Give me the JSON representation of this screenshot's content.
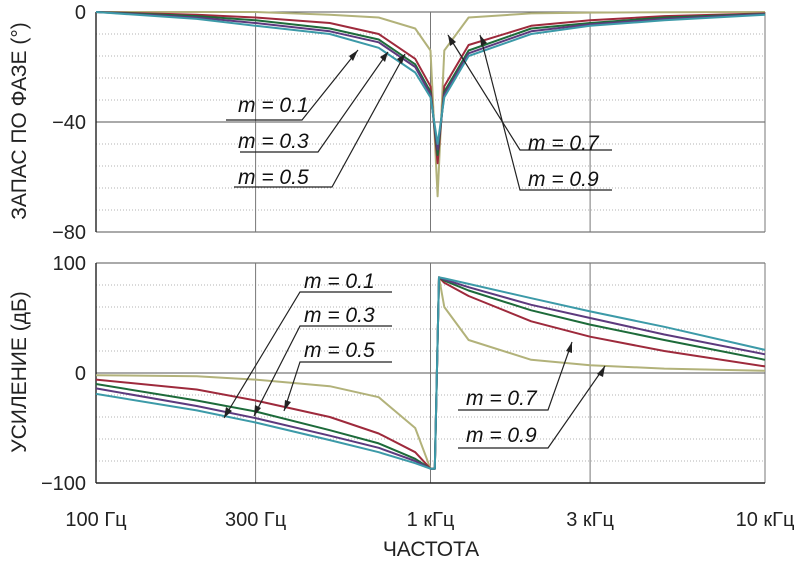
{
  "chart_data": [
    {
      "type": "line",
      "panel": "top",
      "ylabel": "ЗАПАС ПО ФАЗЕ (°)",
      "xscale": "log",
      "xlim": [
        100,
        10000
      ],
      "ylim": [
        -80,
        0
      ],
      "yticks": [
        {
          "value": 0,
          "label": "0"
        },
        {
          "value": -40,
          "label": "−40"
        },
        {
          "value": -80,
          "label": "−80"
        }
      ],
      "grid": true,
      "x_hz": [
        100,
        200,
        300,
        500,
        700,
        900,
        1000,
        1050,
        1100,
        1300,
        2000,
        3000,
        5000,
        10000
      ],
      "series": [
        {
          "name": "m = 0.1",
          "color": "#b2b27a",
          "values": [
            0,
            0,
            0,
            -1,
            -2,
            -6,
            -14,
            -67,
            -14,
            -2,
            -0.5,
            -0.2,
            -0.1,
            0
          ]
        },
        {
          "name": "m = 0.3",
          "color": "#9e2a3c",
          "values": [
            0,
            -1,
            -2,
            -4,
            -8,
            -17,
            -27,
            -55,
            -27,
            -12,
            -5,
            -3,
            -1.5,
            -0.5
          ]
        },
        {
          "name": "m = 0.5",
          "color": "#1d6b3a",
          "values": [
            0,
            -1.5,
            -3,
            -6,
            -10,
            -19,
            -29,
            -52,
            -29,
            -14,
            -6,
            -4,
            -2,
            -0.7
          ]
        },
        {
          "name": "m = 0.7",
          "color": "#5d3a7e",
          "values": [
            0,
            -2,
            -4,
            -7,
            -11,
            -20,
            -30,
            -50,
            -30,
            -15,
            -7,
            -4.5,
            -2.5,
            -0.8
          ]
        },
        {
          "name": "m = 0.9",
          "color": "#3c9aa8",
          "values": [
            0,
            -2.5,
            -5,
            -8,
            -13,
            -22,
            -31,
            -48,
            -31,
            -16,
            -8,
            -5,
            -3,
            -1
          ]
        }
      ],
      "annotations": [
        "m = 0.1",
        "m = 0.3",
        "m = 0.5",
        "m = 0.7",
        "m = 0.9"
      ]
    },
    {
      "type": "line",
      "panel": "bottom",
      "ylabel": "УСИЛЕНИЕ (дБ)",
      "xlabel": "ЧАСТОТА",
      "xscale": "log",
      "xlim": [
        100,
        10000
      ],
      "ylim": [
        -100,
        100
      ],
      "xticks": [
        {
          "value": 100,
          "label": "100 Гц"
        },
        {
          "value": 300,
          "label": "300 Гц"
        },
        {
          "value": 1000,
          "label": "1 кГц"
        },
        {
          "value": 3000,
          "label": "3 кГц"
        },
        {
          "value": 10000,
          "label": "10 кГц"
        }
      ],
      "yticks": [
        {
          "value": 100,
          "label": "100"
        },
        {
          "value": 0,
          "label": "0"
        },
        {
          "value": -100,
          "label": "−100"
        }
      ],
      "grid": true,
      "x_hz": [
        100,
        200,
        300,
        500,
        700,
        900,
        1000,
        1030,
        1060,
        1100,
        1300,
        2000,
        3000,
        5000,
        10000
      ],
      "series": [
        {
          "name": "m = 0.1",
          "color": "#b2b27a",
          "values": [
            -2,
            -3,
            -6,
            -12,
            -22,
            -50,
            -87,
            -87,
            87,
            60,
            30,
            12,
            7,
            4,
            2
          ]
        },
        {
          "name": "m = 0.3",
          "color": "#9e2a3c",
          "values": [
            -6,
            -15,
            -25,
            -40,
            -55,
            -72,
            -87,
            -87,
            87,
            82,
            70,
            47,
            33,
            20,
            6
          ]
        },
        {
          "name": "m = 0.5",
          "color": "#1d6b3a",
          "values": [
            -10,
            -25,
            -35,
            -52,
            -64,
            -78,
            -87,
            -87,
            87,
            84,
            75,
            57,
            44,
            30,
            12
          ]
        },
        {
          "name": "m = 0.7",
          "color": "#5d3a7e",
          "values": [
            -14,
            -30,
            -41,
            -57,
            -68,
            -80,
            -87,
            -87,
            87,
            85,
            78,
            62,
            50,
            35,
            17
          ]
        },
        {
          "name": "m = 0.9",
          "color": "#3c9aa8",
          "values": [
            -19,
            -34,
            -45,
            -61,
            -72,
            -82,
            -87,
            -87,
            87,
            86,
            81,
            68,
            56,
            42,
            21
          ]
        }
      ],
      "annotations": [
        "m = 0.1",
        "m = 0.3",
        "m = 0.5",
        "m = 0.7",
        "m = 0.9"
      ]
    }
  ]
}
